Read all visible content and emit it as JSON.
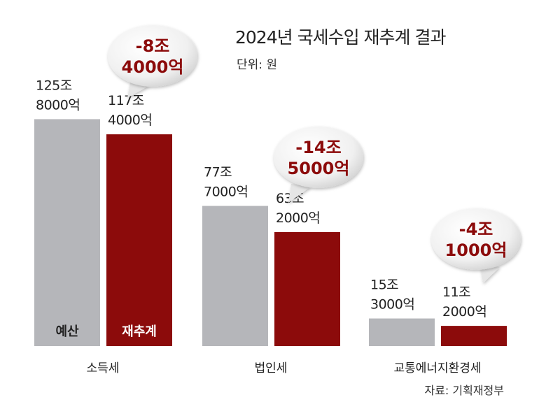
{
  "chart_data": {
    "type": "bar",
    "title": "2024년 국세수입 재추계 결과",
    "unit_label": "단위: 원",
    "source": "자료: 기획재정부",
    "categories": [
      "소득세",
      "법인세",
      "교통에너지환경세"
    ],
    "series": [
      {
        "name": "예산",
        "color": "#b5b6ba",
        "values": [
          125.8,
          77.7,
          15.3
        ],
        "labels": [
          [
            "125조",
            "8000억"
          ],
          [
            "77조",
            "7000억"
          ],
          [
            "15조",
            "3000억"
          ]
        ]
      },
      {
        "name": "재추계",
        "color": "#8c0b0b",
        "values": [
          117.4,
          63.2,
          11.2
        ],
        "labels": [
          [
            "117조",
            "4000억"
          ],
          [
            "63조",
            "2000억"
          ],
          [
            "11조",
            "2000억"
          ]
        ]
      }
    ],
    "differences": [
      {
        "value": -8.4,
        "label": [
          "-8조",
          "4000억"
        ]
      },
      {
        "value": -14.5,
        "label": [
          "-14조",
          "5000억"
        ]
      },
      {
        "value": -4.1,
        "label": [
          "-4조",
          "1000억"
        ]
      }
    ],
    "value_unit": "조 원",
    "ylim": [
      0,
      130
    ],
    "grid": false
  }
}
